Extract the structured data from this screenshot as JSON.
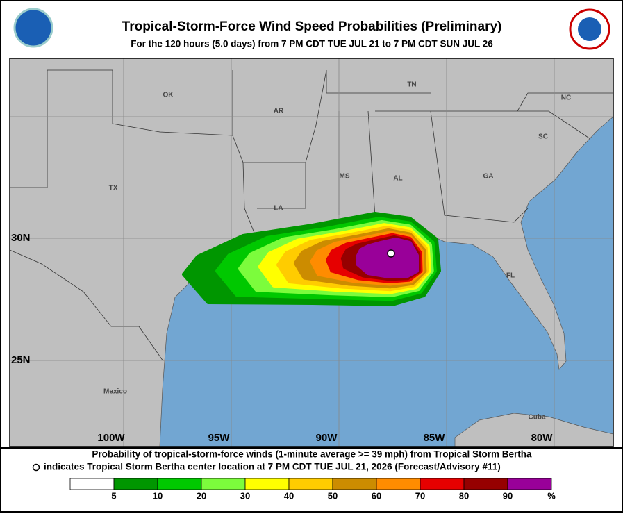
{
  "header": {
    "title": "Tropical-Storm-Force Wind Speed Probabilities (Preliminary)",
    "subtitle": "For the 120 hours (5.0 days) from 7 PM CDT TUE JUL 21 to 7 PM CDT SUN JUL 26"
  },
  "map": {
    "regions": [
      "OK",
      "AR",
      "TN",
      "NC",
      "SC",
      "TX",
      "MS",
      "AL",
      "GA",
      "LA",
      "FL",
      "Mexico",
      "Cuba"
    ],
    "lat_labels": [
      "30N",
      "25N"
    ],
    "lon_labels": [
      "100W",
      "95W",
      "90W",
      "85W",
      "80W"
    ]
  },
  "footer": {
    "line1": "Probability of tropical-storm-force winds (1-minute average >= 39 mph) from Tropical Storm Bertha",
    "line2": "indicates Tropical Storm Bertha center location at 7 PM CDT TUE JUL 21, 2026 (Forecast/Advisory #11)"
  },
  "legend": {
    "ticks": [
      5,
      10,
      20,
      30,
      40,
      50,
      60,
      70,
      80,
      90
    ],
    "unit": "%",
    "colors": [
      "#ffffff",
      "#009600",
      "#00c800",
      "#7cfc3c",
      "#ffff00",
      "#ffcc00",
      "#cc8c00",
      "#ff8c00",
      "#e60000",
      "#960000",
      "#990099"
    ]
  }
}
